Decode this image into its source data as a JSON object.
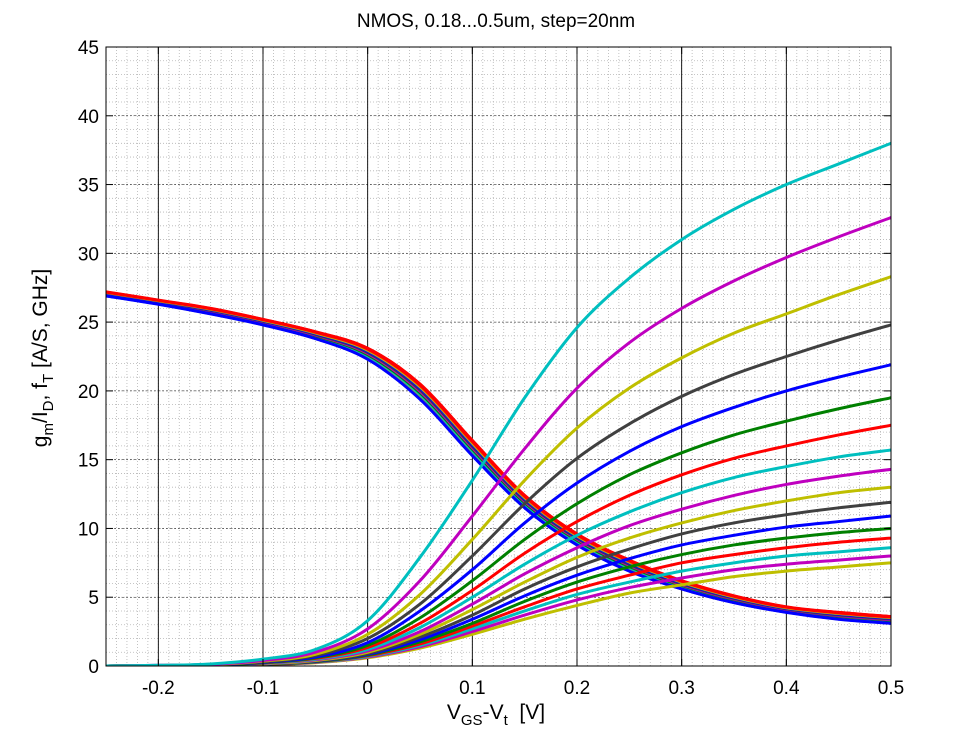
{
  "chart_data": {
    "type": "line",
    "title": "NMOS, 0.18...0.5um, step=20nm",
    "xlabel": {
      "parts": [
        "V",
        "GS",
        "-V",
        "t",
        "  [V]"
      ]
    },
    "ylabel": {
      "parts": [
        "g",
        "m",
        "/I",
        "D",
        ", f",
        "T",
        " [A/S, GHz]"
      ]
    },
    "xlim": [
      -0.25,
      0.5
    ],
    "ylim": [
      0,
      45
    ],
    "xticks": [
      -0.2,
      -0.1,
      0,
      0.1,
      0.2,
      0.3,
      0.4,
      0.5
    ],
    "xtick_labels": [
      "-0.2",
      "-0.1",
      "0",
      "0.1",
      "0.2",
      "0.3",
      "0.4",
      "0.5"
    ],
    "yticks": [
      0,
      5,
      10,
      15,
      20,
      25,
      30,
      35,
      40,
      45
    ],
    "ytick_labels": [
      "0",
      "5",
      "10",
      "15",
      "20",
      "25",
      "30",
      "35",
      "40",
      "45"
    ],
    "grid": true,
    "minor_grid": true,
    "colors": [
      "#00bfbf",
      "#bf00bf",
      "#bfbf00",
      "#404040",
      "#0000ff",
      "#008000",
      "#ff0000"
    ],
    "x": [
      -0.25,
      -0.2,
      -0.15,
      -0.1,
      -0.05,
      0.0,
      0.05,
      0.1,
      0.15,
      0.2,
      0.25,
      0.3,
      0.35,
      0.4,
      0.45,
      0.5
    ],
    "gm_id_series": [
      {
        "color": "#ff0000",
        "values": [
          27.2,
          26.6,
          26.0,
          25.2,
          24.3,
          23.1,
          20.5,
          16.4,
          12.4,
          9.6,
          7.7,
          6.2,
          5.1,
          4.3,
          3.9,
          3.6
        ]
      },
      {
        "color": "#0000ff",
        "values": [
          26.9,
          26.3,
          25.6,
          24.8,
          23.8,
          22.3,
          19.4,
          15.3,
          11.5,
          8.8,
          6.9,
          5.6,
          4.6,
          3.9,
          3.4,
          3.1
        ]
      }
    ],
    "ft_series": [
      {
        "color": "#00bfbf",
        "values": [
          0.0,
          0.05,
          0.15,
          0.5,
          1.2,
          3.3,
          7.9,
          13.5,
          19.5,
          24.6,
          28.2,
          31.0,
          33.2,
          35.0,
          36.5,
          38.0
        ]
      },
      {
        "color": "#bf00bf",
        "values": [
          0.0,
          0.05,
          0.12,
          0.4,
          1.0,
          2.7,
          6.2,
          10.9,
          15.8,
          20.2,
          23.5,
          26.0,
          28.0,
          29.7,
          31.2,
          32.6
        ]
      },
      {
        "color": "#bfbf00",
        "values": [
          0.0,
          0.04,
          0.1,
          0.35,
          0.85,
          2.3,
          5.2,
          9.2,
          13.5,
          17.3,
          20.2,
          22.4,
          24.2,
          25.6,
          27.0,
          28.3
        ]
      },
      {
        "color": "#404040",
        "values": [
          0.0,
          0.04,
          0.09,
          0.3,
          0.75,
          2.0,
          4.5,
          8.0,
          11.8,
          15.1,
          17.6,
          19.6,
          21.2,
          22.5,
          23.7,
          24.8
        ]
      },
      {
        "color": "#0000ff",
        "values": [
          0.0,
          0.03,
          0.08,
          0.27,
          0.65,
          1.7,
          4.0,
          7.0,
          10.4,
          13.3,
          15.6,
          17.4,
          18.8,
          20.0,
          21.0,
          21.9
        ]
      },
      {
        "color": "#008000",
        "values": [
          0.0,
          0.03,
          0.07,
          0.24,
          0.6,
          1.5,
          3.5,
          6.2,
          9.2,
          11.8,
          13.9,
          15.5,
          16.8,
          17.8,
          18.7,
          19.5
        ]
      },
      {
        "color": "#ff0000",
        "values": [
          0.0,
          0.03,
          0.07,
          0.22,
          0.55,
          1.35,
          3.1,
          5.5,
          8.2,
          10.5,
          12.4,
          13.9,
          15.1,
          16.0,
          16.8,
          17.5
        ]
      },
      {
        "color": "#00bfbf",
        "values": [
          0.0,
          0.02,
          0.06,
          0.2,
          0.5,
          1.2,
          2.8,
          5.0,
          7.4,
          9.5,
          11.2,
          12.6,
          13.7,
          14.5,
          15.2,
          15.7
        ]
      },
      {
        "color": "#bf00bf",
        "values": [
          0.0,
          0.02,
          0.05,
          0.18,
          0.45,
          1.1,
          2.5,
          4.5,
          6.7,
          8.6,
          10.2,
          11.4,
          12.4,
          13.2,
          13.8,
          14.3
        ]
      },
      {
        "color": "#bfbf00",
        "values": [
          0.0,
          0.02,
          0.05,
          0.16,
          0.4,
          1.0,
          2.3,
          4.1,
          6.1,
          7.9,
          9.3,
          10.4,
          11.3,
          12.0,
          12.6,
          13.0
        ]
      },
      {
        "color": "#404040",
        "values": [
          0.0,
          0.02,
          0.05,
          0.15,
          0.38,
          0.9,
          2.1,
          3.7,
          5.6,
          7.2,
          8.5,
          9.6,
          10.4,
          11.0,
          11.5,
          11.9
        ]
      },
      {
        "color": "#0000ff",
        "values": [
          0.0,
          0.02,
          0.04,
          0.14,
          0.35,
          0.85,
          1.9,
          3.4,
          5.1,
          6.6,
          7.8,
          8.8,
          9.5,
          10.1,
          10.5,
          10.9
        ]
      },
      {
        "color": "#008000",
        "values": [
          0.0,
          0.02,
          0.04,
          0.13,
          0.32,
          0.8,
          1.75,
          3.1,
          4.7,
          6.1,
          7.2,
          8.1,
          8.8,
          9.3,
          9.7,
          10.0
        ]
      },
      {
        "color": "#ff0000",
        "values": [
          0.0,
          0.01,
          0.04,
          0.12,
          0.3,
          0.75,
          1.6,
          2.9,
          4.3,
          5.6,
          6.6,
          7.5,
          8.1,
          8.6,
          9.0,
          9.3
        ]
      },
      {
        "color": "#00bfbf",
        "values": [
          0.0,
          0.01,
          0.03,
          0.11,
          0.28,
          0.7,
          1.5,
          2.7,
          4.0,
          5.2,
          6.1,
          6.9,
          7.5,
          8.0,
          8.3,
          8.6
        ]
      },
      {
        "color": "#bf00bf",
        "values": [
          0.0,
          0.01,
          0.03,
          0.1,
          0.26,
          0.65,
          1.4,
          2.5,
          3.7,
          4.8,
          5.7,
          6.4,
          7.0,
          7.4,
          7.7,
          8.0
        ]
      },
      {
        "color": "#bfbf00",
        "values": [
          0.0,
          0.01,
          0.03,
          0.1,
          0.24,
          0.6,
          1.3,
          2.3,
          3.4,
          4.4,
          5.3,
          5.9,
          6.5,
          6.9,
          7.2,
          7.5
        ]
      }
    ]
  }
}
